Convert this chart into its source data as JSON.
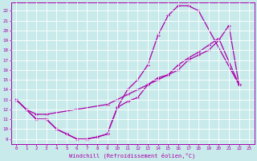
{
  "xlabel": "Windchill (Refroidissement éolien,°C)",
  "bg_color": "#c8eaea",
  "line_color": "#aa00aa",
  "grid_color": "#ffffff",
  "xlim": [
    -0.5,
    23.5
  ],
  "ylim": [
    8.5,
    22.8
  ],
  "xticks": [
    0,
    1,
    2,
    3,
    4,
    5,
    6,
    7,
    8,
    9,
    10,
    11,
    12,
    13,
    14,
    15,
    16,
    17,
    18,
    19,
    20,
    21,
    22,
    23
  ],
  "yticks": [
    9,
    10,
    11,
    12,
    13,
    14,
    15,
    16,
    17,
    18,
    19,
    20,
    21,
    22
  ],
  "line1_x": [
    0,
    1,
    2,
    3,
    4,
    5,
    6,
    7,
    8,
    9,
    10,
    11,
    12,
    13,
    14,
    15,
    16,
    17,
    18,
    19,
    20,
    22
  ],
  "line1_y": [
    13,
    12,
    11,
    11,
    10,
    9.5,
    9,
    9,
    9.2,
    9.5,
    12.2,
    12.8,
    13.2,
    14.5,
    15.2,
    15.5,
    16.5,
    17.2,
    17.8,
    18.5,
    19.2,
    14.5
  ],
  "line2_x": [
    0,
    1,
    2,
    3,
    4,
    5,
    6,
    7,
    8,
    9,
    10,
    11,
    12,
    13,
    14,
    15,
    16,
    17,
    18,
    22
  ],
  "line2_y": [
    13,
    12,
    11,
    11,
    10,
    9.5,
    9,
    9,
    9.2,
    9.5,
    12.2,
    14.0,
    15.0,
    16.5,
    19.5,
    21.5,
    22.5,
    22.5,
    22.0,
    14.5
  ],
  "line3_x": [
    0,
    1,
    2,
    3,
    9,
    10,
    11,
    12,
    13,
    14,
    15,
    16,
    17,
    18,
    19,
    20,
    21,
    22
  ],
  "line3_y": [
    13,
    12.0,
    11.5,
    11.5,
    12.5,
    13.0,
    13.5,
    14.0,
    14.5,
    15.0,
    15.5,
    16.0,
    17.0,
    17.5,
    18.0,
    19.0,
    20.5,
    14.5
  ]
}
